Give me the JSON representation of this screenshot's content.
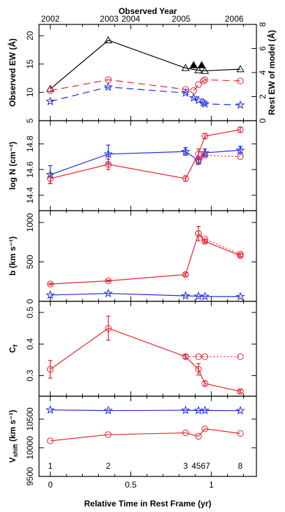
{
  "colors": {
    "red": "#e8202a",
    "blue": "#1c2be0",
    "black": "#000000"
  },
  "top_axis": {
    "title": "Observed Year",
    "ticks": [
      {
        "label": "2002",
        "t": 0.0
      },
      {
        "label": "2003",
        "t": 0.366
      },
      {
        "label": "2004",
        "t": 0.5
      },
      {
        "label": "2005",
        "t": 0.812
      },
      {
        "label": "2006",
        "t": 1.142
      }
    ]
  },
  "bottom_axis": {
    "title": "Relative Time in Rest Frame (yr)",
    "ticks": [
      {
        "label": "0",
        "t": 0
      },
      {
        "label": "0.5",
        "t": 0.5
      },
      {
        "label": "1",
        "t": 1
      }
    ]
  },
  "epochs": [
    {
      "label": "1",
      "t": 0.0
    },
    {
      "label": "2",
      "t": 0.36
    },
    {
      "label": "3",
      "t": 0.84
    },
    {
      "label": "4567",
      "t": 0.935
    },
    {
      "label": "8",
      "t": 1.18
    }
  ],
  "chart_data": [
    {
      "type": "line",
      "ylabel": "Observed EW (Å)",
      "xlim": [
        -0.07,
        1.28
      ],
      "ylim": [
        5,
        22
      ],
      "yticks": [
        "5",
        "10",
        "15",
        "20"
      ],
      "right_axis": {
        "label": "Rest EW of model (Å)",
        "ylim": [
          0,
          8
        ],
        "ticks": [
          "0",
          "2",
          "4",
          "6",
          "8"
        ]
      },
      "series": [
        {
          "color": "black",
          "style": "solid",
          "marker": "triangle",
          "x": [
            0.0,
            0.36,
            0.84,
            0.92,
            0.96,
            1.18
          ],
          "y": [
            10.6,
            19.2,
            14.3,
            13.9,
            13.8,
            14.1
          ]
        },
        {
          "color": "red",
          "style": "dashed",
          "marker": "circle",
          "axis": "right",
          "x": [
            0.0,
            0.36,
            0.84,
            0.89,
            0.92,
            0.95,
            0.96,
            1.18
          ],
          "y": [
            2.5,
            3.4,
            2.6,
            2.5,
            3.0,
            3.3,
            3.4,
            3.3
          ]
        },
        {
          "color": "blue",
          "style": "dashed",
          "marker": "star",
          "axis": "right",
          "x": [
            0.0,
            0.36,
            0.84,
            0.89,
            0.92,
            0.95,
            0.96,
            1.18
          ],
          "y": [
            1.6,
            2.8,
            2.3,
            1.9,
            1.7,
            1.5,
            1.4,
            1.3
          ]
        }
      ],
      "filled_triangles": [
        {
          "x": 0.89,
          "y": 14.8
        },
        {
          "x": 0.94,
          "y": 14.8
        }
      ]
    },
    {
      "type": "line",
      "ylabel": "log N (cm⁻²)",
      "xlim": [
        -0.07,
        1.28
      ],
      "ylim": [
        14.28,
        14.98
      ],
      "yticks": [
        "14.4",
        "14.6",
        "14.8"
      ],
      "series": [
        {
          "color": "blue",
          "style": "solid",
          "marker": "star",
          "x": [
            0.0,
            0.36,
            0.84,
            0.92,
            0.96,
            1.18
          ],
          "y": [
            14.56,
            14.72,
            14.74,
            14.67,
            14.73,
            14.75
          ],
          "err": [
            0.07,
            0.07,
            0.03,
            0.03,
            0.03,
            0.03
          ]
        },
        {
          "color": "red",
          "style": "solid",
          "marker": "circle",
          "x": [
            0.0,
            0.36,
            0.84,
            0.92,
            0.96,
            1.18
          ],
          "y": [
            14.53,
            14.64,
            14.53,
            14.72,
            14.86,
            14.91
          ],
          "err": [
            0.04,
            0.04,
            0.02,
            0.04,
            0.02,
            0.02
          ]
        },
        {
          "color": "red",
          "style": "dotted",
          "marker": "circle",
          "x": [
            0.92,
            0.96,
            1.18
          ],
          "y": [
            14.67,
            14.71,
            14.7
          ]
        }
      ]
    },
    {
      "type": "line",
      "ylabel": "b (km s⁻¹)",
      "xlim": [
        -0.07,
        1.28
      ],
      "ylim": [
        0,
        1150
      ],
      "yticks": [
        "0",
        "500",
        "1000"
      ],
      "series": [
        {
          "color": "red",
          "style": "solid",
          "marker": "circle",
          "x": [
            0.0,
            0.36,
            0.84,
            0.92,
            0.96,
            1.18
          ],
          "y": [
            220,
            260,
            340,
            860,
            760,
            580
          ],
          "err": [
            10,
            10,
            20,
            90,
            20,
            20
          ]
        },
        {
          "color": "red",
          "style": "dotted",
          "marker": "circle",
          "x": [
            0.92,
            0.96,
            1.18
          ],
          "y": [
            860,
            790,
            600
          ]
        },
        {
          "color": "blue",
          "style": "solid",
          "marker": "star",
          "x": [
            0.0,
            0.36,
            0.84,
            0.92,
            0.96,
            1.18
          ],
          "y": [
            80,
            100,
            70,
            65,
            62,
            60
          ]
        }
      ]
    },
    {
      "type": "line",
      "ylabel": "C_f",
      "xlim": [
        -0.07,
        1.28
      ],
      "ylim": [
        0.235,
        0.535
      ],
      "yticks": [
        "0.3",
        "0.4",
        "0.5"
      ],
      "series": [
        {
          "color": "red",
          "style": "solid",
          "marker": "circle",
          "x": [
            0.0,
            0.36,
            0.84,
            0.92,
            0.96,
            1.18
          ],
          "y": [
            0.32,
            0.45,
            0.36,
            0.32,
            0.275,
            0.25
          ],
          "err": [
            0.028,
            0.038,
            0.006,
            0.018,
            0.008,
            0.005
          ]
        },
        {
          "color": "red",
          "style": "dotted",
          "marker": "circle",
          "x": [
            0.84,
            0.92,
            0.96,
            1.18
          ],
          "y": [
            0.36,
            0.36,
            0.36,
            0.36
          ]
        }
      ]
    },
    {
      "type": "line",
      "ylabel": "V_shift (km s⁻¹)",
      "xlim": [
        -0.07,
        1.28
      ],
      "ylim": [
        9500,
        10900
      ],
      "yticks": [
        "9500",
        "10000",
        "10500"
      ],
      "series": [
        {
          "color": "blue",
          "style": "solid",
          "marker": "star",
          "x": [
            0.0,
            0.36,
            0.84,
            0.92,
            0.96,
            1.18
          ],
          "y": [
            10660,
            10650,
            10655,
            10650,
            10652,
            10648
          ]
        },
        {
          "color": "red",
          "style": "solid",
          "marker": "circle",
          "x": [
            0.0,
            0.36,
            0.84,
            0.92,
            0.96,
            1.18
          ],
          "y": [
            10120,
            10230,
            10260,
            10200,
            10330,
            10250
          ]
        }
      ]
    }
  ]
}
